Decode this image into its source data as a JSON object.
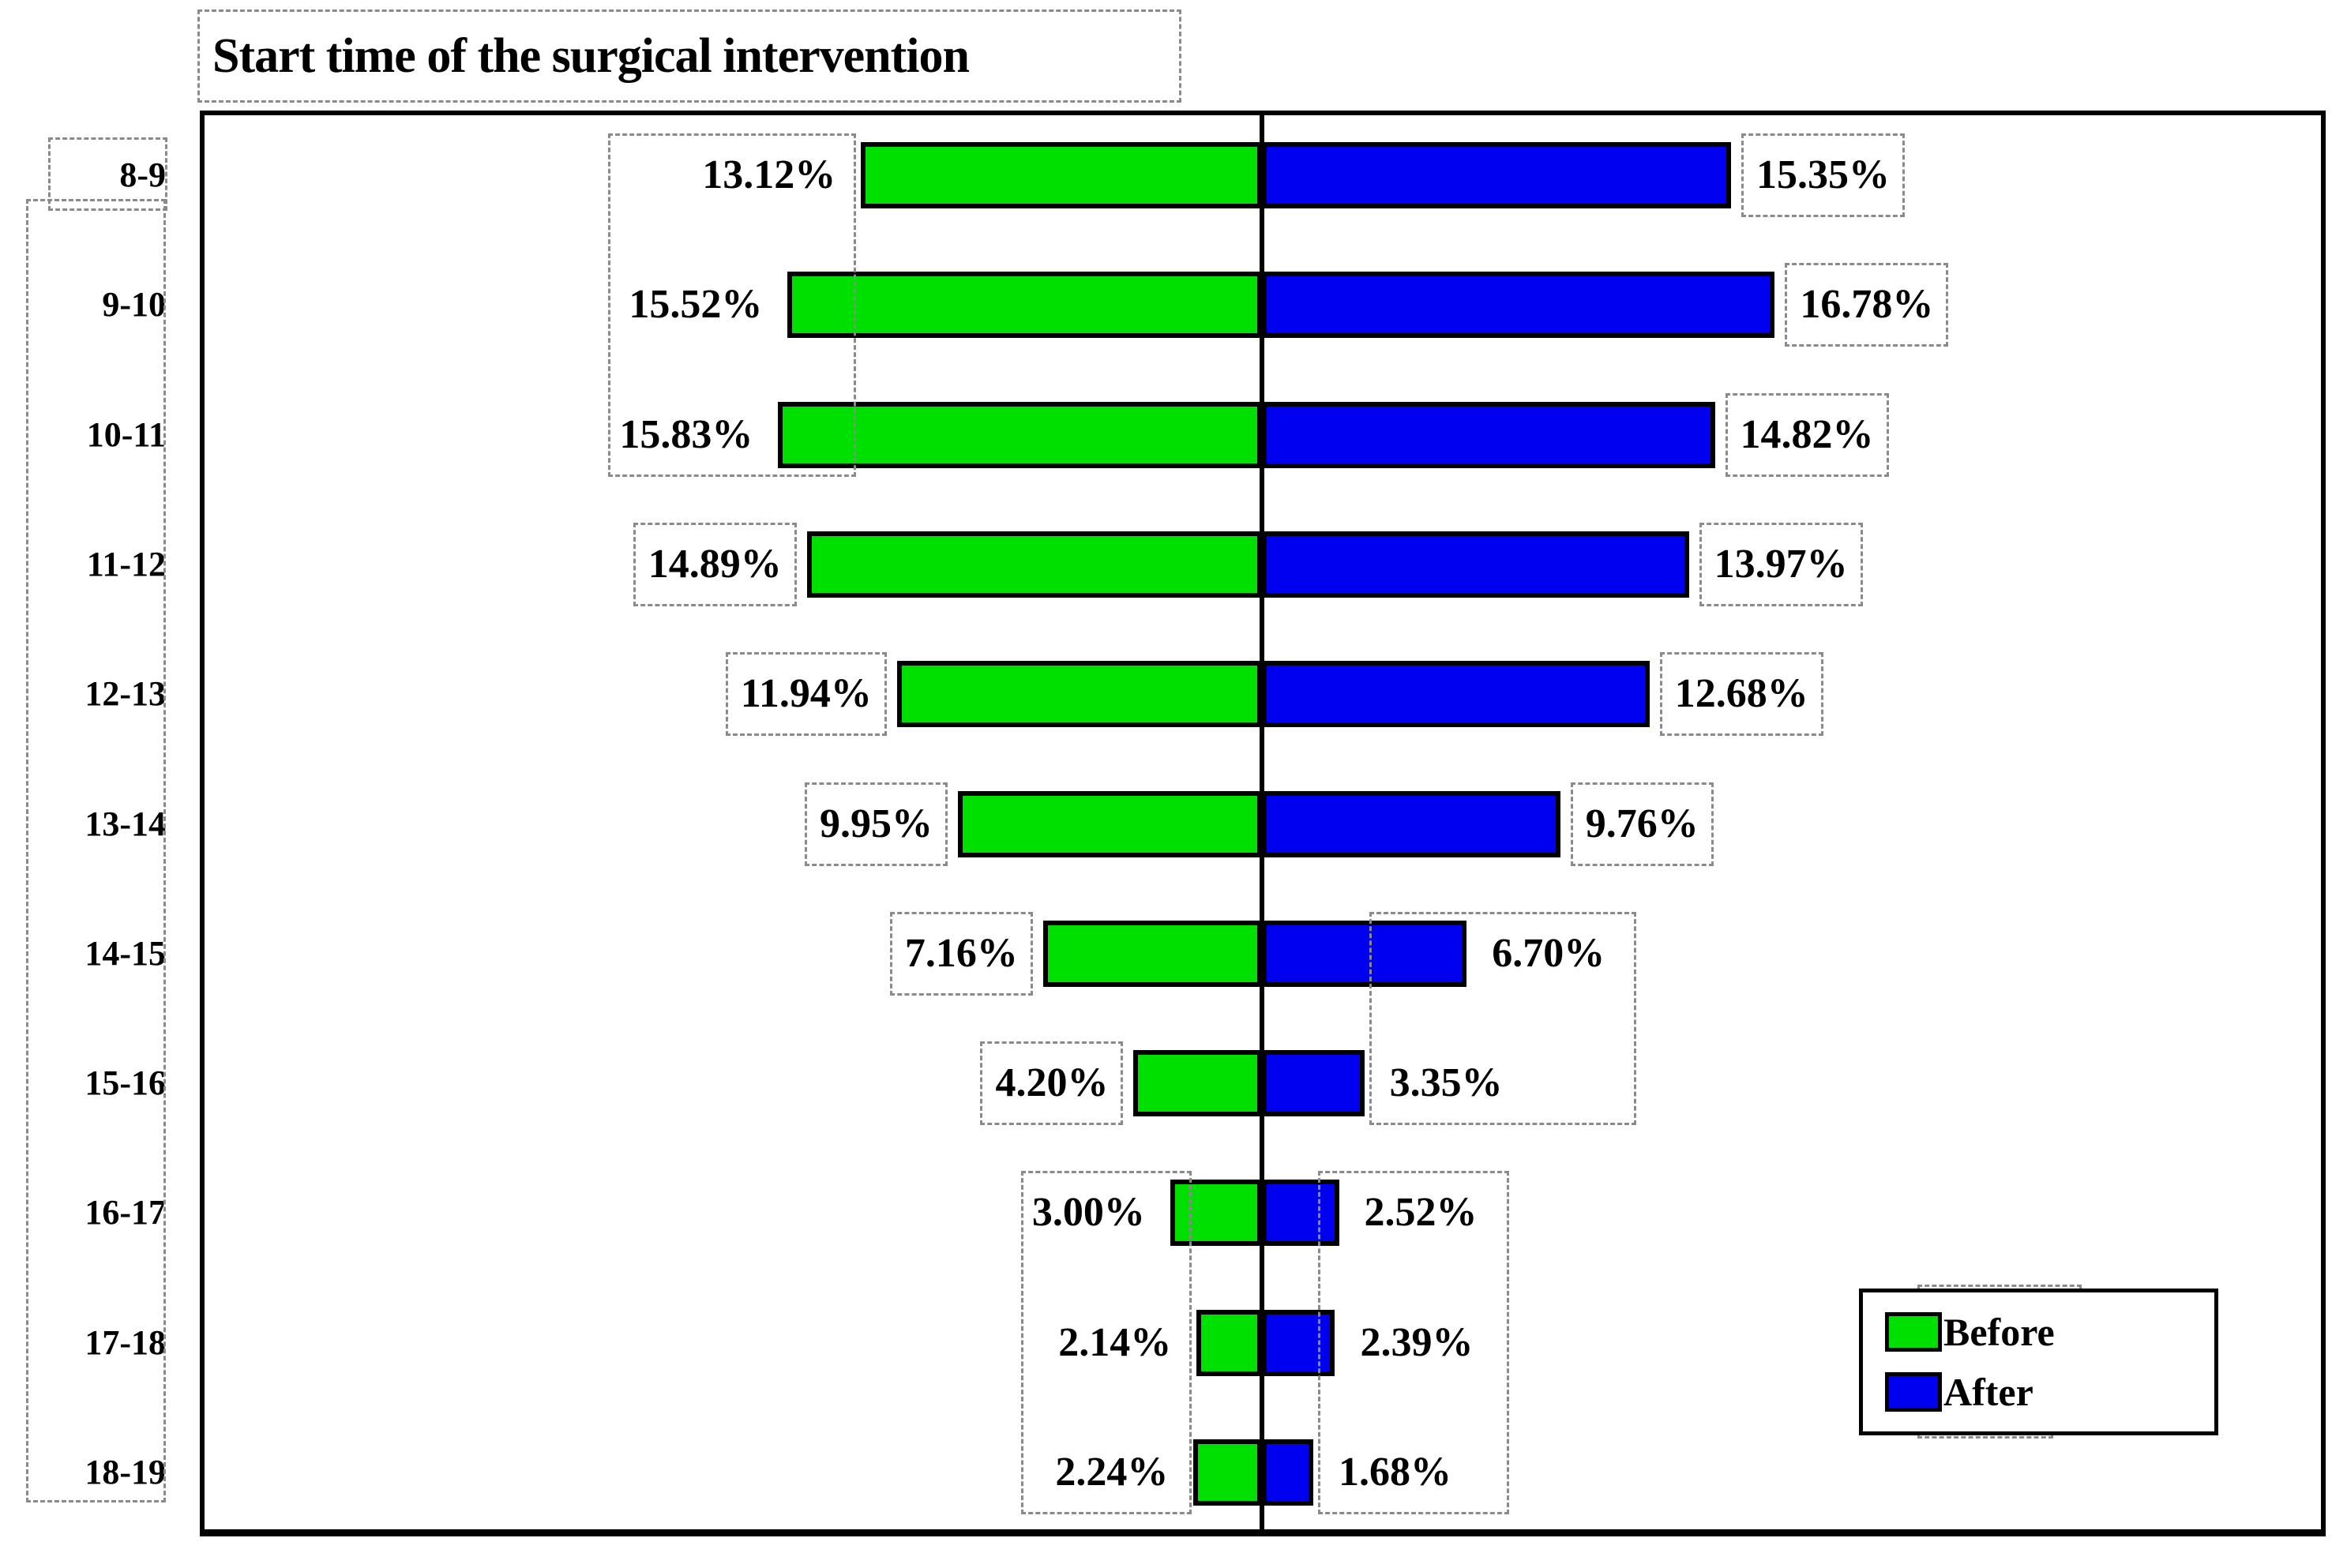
{
  "title": "Start time of the surgical intervention",
  "legend": {
    "before_label": "Before",
    "after_label": "After"
  },
  "colors": {
    "before": "#00e000",
    "after": "#0000f0",
    "axis": "#000000",
    "selection_dash": "#8a8a8a"
  },
  "chart_data": {
    "type": "bar",
    "variant": "bidirectional-horizontal-tornado",
    "title": "Start time of the surgical intervention",
    "categories": [
      "8-9",
      "9-10",
      "10-11",
      "11-12",
      "12-13",
      "13-14",
      "14-15",
      "15-16",
      "16-17",
      "17-18",
      "18-19"
    ],
    "series": [
      {
        "name": "Before",
        "side": "left",
        "color": "#00e000",
        "values": [
          13.12,
          15.52,
          15.83,
          14.89,
          11.94,
          9.95,
          7.16,
          4.2,
          3.0,
          2.14,
          2.24
        ]
      },
      {
        "name": "After",
        "side": "right",
        "color": "#0000f0",
        "values": [
          15.35,
          16.78,
          14.82,
          13.97,
          12.68,
          9.76,
          6.7,
          3.35,
          2.52,
          2.39,
          1.68
        ]
      }
    ],
    "data_labels": {
      "before": [
        "13.12%",
        "15.52%",
        "15.83%",
        "14.89%",
        "11.94%",
        "9.95%",
        "7.16%",
        "4.20%",
        "3.00%",
        "2.14%",
        "2.24%"
      ],
      "after": [
        "15.35%",
        "16.78%",
        "14.82%",
        "13.97%",
        "12.68%",
        "9.76%",
        "6.70%",
        "3.35%",
        "2.52%",
        "2.39%",
        "1.68%"
      ]
    },
    "axis": {
      "center_value": 0,
      "unit": "%",
      "category_axis_side": "left"
    },
    "legend_position": "bottom-right",
    "grid": "off"
  }
}
